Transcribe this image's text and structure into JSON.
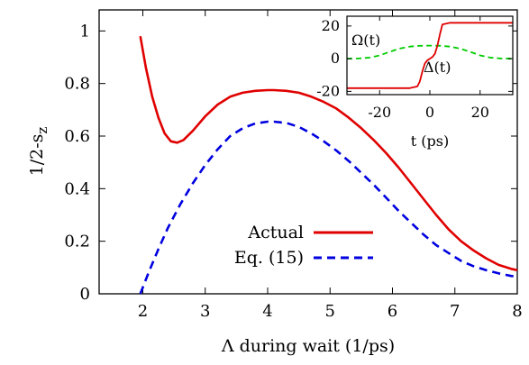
{
  "chart_data": [
    {
      "type": "line",
      "xlabel": "Λ during wait (1/ps)",
      "ylabel_main": "1/2-s",
      "ylabel_sub": "z",
      "xlim": [
        1.3,
        8
      ],
      "ylim": [
        0,
        1.08
      ],
      "xticks": [
        2,
        3,
        4,
        5,
        6,
        7,
        8
      ],
      "yticks": [
        0,
        0.2,
        0.4,
        0.6,
        0.8,
        1
      ],
      "ytick_labels": [
        "0",
        "0.2",
        "0.4",
        "0.6",
        "0.8",
        "1"
      ],
      "legend_position": "center",
      "series": [
        {
          "name": "Actual",
          "color": "#e00000",
          "dash": "solid",
          "x": [
            1.96,
            2.05,
            2.15,
            2.25,
            2.35,
            2.45,
            2.55,
            2.65,
            2.8,
            3.0,
            3.2,
            3.4,
            3.6,
            3.8,
            4.0,
            4.1,
            4.3,
            4.5,
            4.7,
            4.9,
            5.1,
            5.3,
            5.5,
            5.7,
            5.9,
            6.1,
            6.3,
            6.5,
            6.7,
            6.9,
            7.1,
            7.3,
            7.5,
            7.7,
            7.9,
            8.0
          ],
          "y": [
            0.98,
            0.86,
            0.75,
            0.67,
            0.61,
            0.58,
            0.575,
            0.585,
            0.62,
            0.675,
            0.72,
            0.75,
            0.765,
            0.772,
            0.775,
            0.775,
            0.772,
            0.765,
            0.75,
            0.73,
            0.705,
            0.67,
            0.63,
            0.585,
            0.535,
            0.48,
            0.42,
            0.36,
            0.3,
            0.245,
            0.2,
            0.165,
            0.135,
            0.11,
            0.095,
            0.09
          ]
        },
        {
          "name": "Eq. (15)",
          "color": "#0000e0",
          "dash": "dashed",
          "x": [
            1.96,
            2.1,
            2.25,
            2.4,
            2.6,
            2.8,
            3.0,
            3.2,
            3.4,
            3.6,
            3.8,
            4.0,
            4.1,
            4.3,
            4.5,
            4.7,
            4.9,
            5.1,
            5.3,
            5.5,
            5.7,
            5.9,
            6.1,
            6.3,
            6.5,
            6.7,
            6.9,
            7.1,
            7.3,
            7.5,
            7.7,
            7.9,
            8.0
          ],
          "y": [
            0.0,
            0.085,
            0.17,
            0.25,
            0.34,
            0.42,
            0.49,
            0.55,
            0.6,
            0.63,
            0.648,
            0.655,
            0.655,
            0.65,
            0.635,
            0.61,
            0.58,
            0.545,
            0.505,
            0.46,
            0.415,
            0.365,
            0.315,
            0.27,
            0.225,
            0.185,
            0.155,
            0.125,
            0.105,
            0.09,
            0.078,
            0.068,
            0.065
          ]
        }
      ]
    },
    {
      "type": "line",
      "xlabel": "t (ps)",
      "xlim": [
        -33,
        33
      ],
      "ylim": [
        -22,
        26
      ],
      "xticks": [
        -20,
        0,
        20
      ],
      "yticks": [
        -20,
        0,
        20
      ],
      "series": [
        {
          "name": "Ω(t)",
          "color": "#00cc00",
          "dash": "dashed",
          "x": [
            -33,
            -28,
            -24,
            -20,
            -16,
            -12,
            -8,
            -4,
            0,
            4,
            8,
            12,
            16,
            20,
            24,
            28,
            33
          ],
          "y": [
            0,
            0.2,
            0.7,
            2.0,
            4.2,
            6.2,
            7.4,
            7.9,
            8.0,
            7.9,
            7.4,
            6.2,
            4.2,
            2.0,
            0.7,
            0.2,
            0
          ]
        },
        {
          "name": "Δ(t)",
          "color": "#e00000",
          "dash": "solid",
          "x": [
            -33,
            -8,
            -5,
            -4,
            -3,
            -2,
            -1,
            0,
            1,
            2,
            3,
            4,
            5,
            8,
            33
          ],
          "y": [
            -18,
            -18,
            -17,
            -14,
            -8,
            -3,
            -1,
            0,
            1,
            3,
            8,
            15,
            21,
            22,
            22
          ]
        }
      ]
    }
  ]
}
